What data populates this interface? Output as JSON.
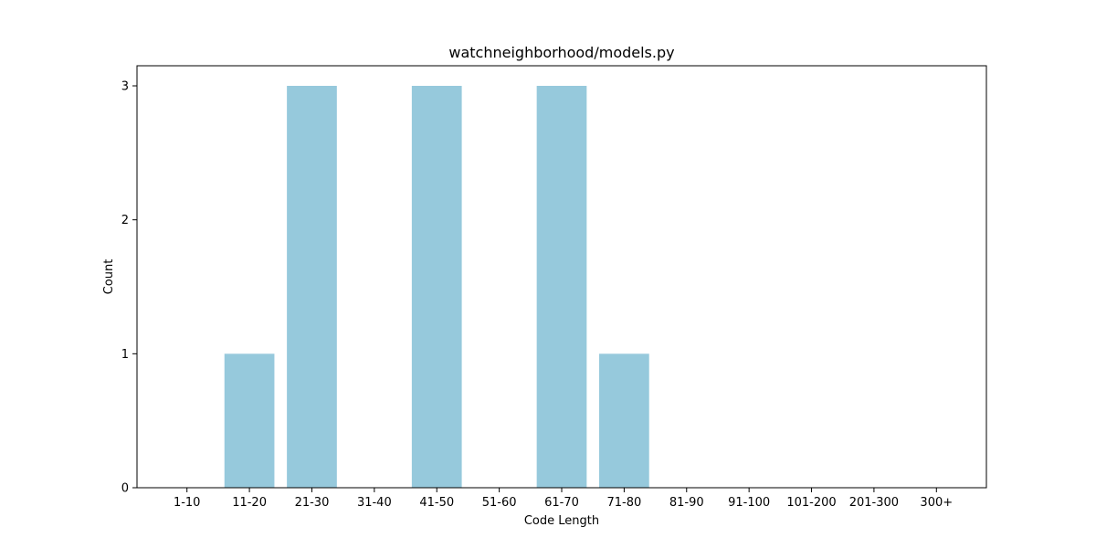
{
  "chart_data": {
    "type": "bar",
    "title": "watchneighborhood/models.py",
    "xlabel": "Code Length",
    "ylabel": "Count",
    "categories": [
      "1-10",
      "11-20",
      "21-30",
      "31-40",
      "41-50",
      "51-60",
      "61-70",
      "71-80",
      "81-90",
      "91-100",
      "101-200",
      "201-300",
      "300+"
    ],
    "values": [
      0,
      1,
      3,
      0,
      3,
      0,
      3,
      1,
      0,
      0,
      0,
      0,
      0
    ],
    "ylim": [
      0,
      3.15
    ],
    "yticks": [
      0,
      1,
      2,
      3
    ],
    "grid": false,
    "bar_color": "#96c9dc"
  }
}
